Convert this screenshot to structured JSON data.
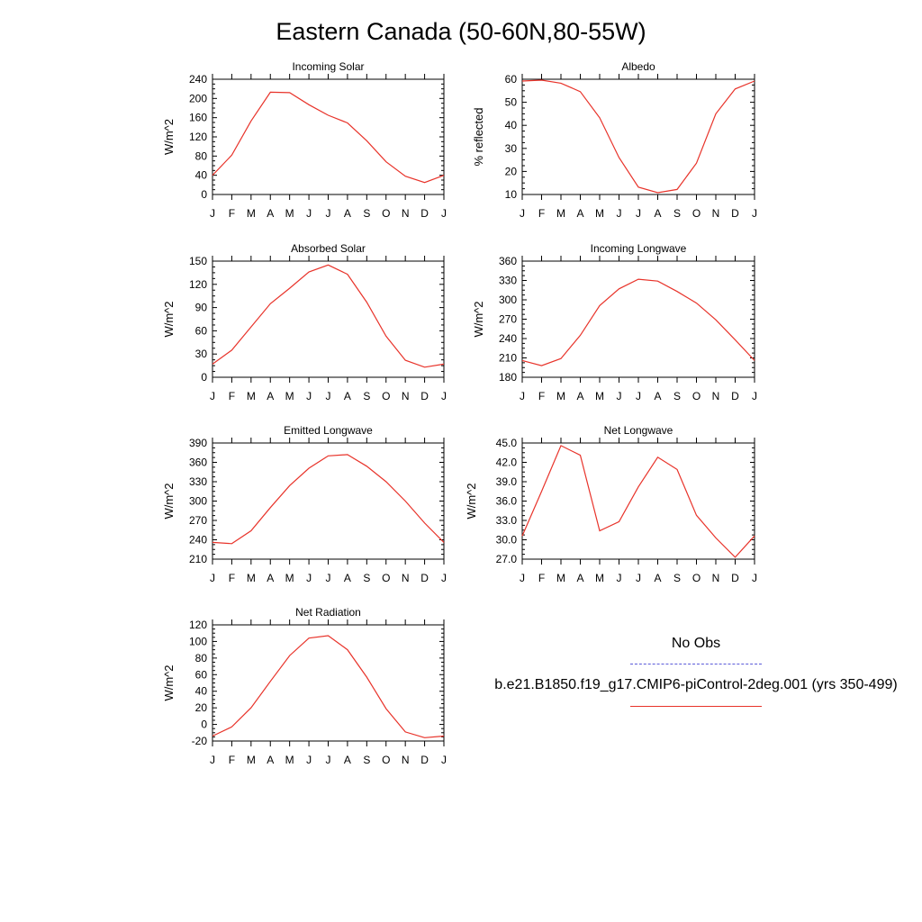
{
  "title": "Eastern Canada (50-60N,80-55W)",
  "legend": {
    "obs_label": "No Obs",
    "obs_color": "#5b5bd9",
    "model_label": "b.e21.B1850.f19_g17.CMIP6-piControl-2deg.001 (yrs 350-499)",
    "model_color": "#e8332a"
  },
  "chart_data": [
    {
      "type": "line",
      "title": "Incoming Solar",
      "ylabel": "W/m^2",
      "categories": [
        "J",
        "F",
        "M",
        "A",
        "M",
        "J",
        "J",
        "A",
        "S",
        "O",
        "N",
        "D",
        "J"
      ],
      "ylim": [
        0,
        240
      ],
      "yticks": [
        "0",
        "40",
        "80",
        "120",
        "160",
        "200",
        "240"
      ],
      "values": [
        40,
        82,
        153,
        213,
        212,
        187,
        165,
        149,
        112,
        68,
        38,
        25,
        40
      ]
    },
    {
      "type": "line",
      "title": "Albedo",
      "ylabel": "% reflected",
      "categories": [
        "J",
        "F",
        "M",
        "A",
        "M",
        "J",
        "J",
        "A",
        "S",
        "O",
        "N",
        "D",
        "J"
      ],
      "ylim": [
        10,
        60
      ],
      "yticks": [
        "10",
        "20",
        "30",
        "40",
        "50",
        "60"
      ],
      "values": [
        59.2,
        59.6,
        58.3,
        54.6,
        43.3,
        26.0,
        13.2,
        10.8,
        12.2,
        23.6,
        45.0,
        55.8,
        59.2
      ]
    },
    {
      "type": "line",
      "title": "Absorbed Solar",
      "ylabel": "W/m^2",
      "categories": [
        "J",
        "F",
        "M",
        "A",
        "M",
        "J",
        "J",
        "A",
        "S",
        "O",
        "N",
        "D",
        "J"
      ],
      "ylim": [
        0,
        150
      ],
      "yticks": [
        "0",
        "30",
        "60",
        "90",
        "120",
        "150"
      ],
      "values": [
        17,
        35,
        65,
        95,
        115,
        136,
        145,
        133,
        97,
        53,
        22,
        13,
        17
      ]
    },
    {
      "type": "line",
      "title": "Incoming Longwave",
      "ylabel": "W/m^2",
      "categories": [
        "J",
        "F",
        "M",
        "A",
        "M",
        "J",
        "J",
        "A",
        "S",
        "O",
        "N",
        "D",
        "J"
      ],
      "ylim": [
        180,
        360
      ],
      "yticks": [
        "180",
        "210",
        "240",
        "270",
        "300",
        "330",
        "360"
      ],
      "values": [
        206,
        198,
        209,
        245,
        291,
        317,
        332,
        329,
        313,
        295,
        269,
        238,
        206
      ]
    },
    {
      "type": "line",
      "title": "Emitted Longwave",
      "ylabel": "W/m^2",
      "categories": [
        "J",
        "F",
        "M",
        "A",
        "M",
        "J",
        "J",
        "A",
        "S",
        "O",
        "N",
        "D",
        "J"
      ],
      "ylim": [
        210,
        390
      ],
      "yticks": [
        "210",
        "240",
        "270",
        "300",
        "330",
        "360",
        "390"
      ],
      "values": [
        236,
        234,
        254,
        290,
        324,
        351,
        370,
        372,
        354,
        330,
        300,
        266,
        236
      ]
    },
    {
      "type": "line",
      "title": "Net Longwave",
      "ylabel": "W/m^2",
      "categories": [
        "J",
        "F",
        "M",
        "A",
        "M",
        "J",
        "J",
        "A",
        "S",
        "O",
        "N",
        "D",
        "J"
      ],
      "ylim": [
        27,
        45
      ],
      "yticks": [
        "27.0",
        "30.0",
        "33.0",
        "36.0",
        "39.0",
        "42.0",
        "45.0"
      ],
      "values": [
        30.6,
        37.5,
        44.6,
        43.1,
        31.4,
        32.8,
        38.2,
        42.8,
        40.9,
        33.8,
        30.3,
        27.3,
        30.6
      ]
    },
    {
      "type": "line",
      "title": "Net Radiation",
      "ylabel": "W/m^2",
      "categories": [
        "J",
        "F",
        "M",
        "A",
        "M",
        "J",
        "J",
        "A",
        "S",
        "O",
        "N",
        "D",
        "J"
      ],
      "ylim": [
        -20,
        120
      ],
      "yticks": [
        "-20",
        "0",
        "20",
        "40",
        "60",
        "80",
        "100",
        "120"
      ],
      "values": [
        -14,
        -3,
        20,
        52,
        83,
        104,
        107,
        90,
        57,
        19,
        -9,
        -16,
        -14
      ]
    }
  ]
}
